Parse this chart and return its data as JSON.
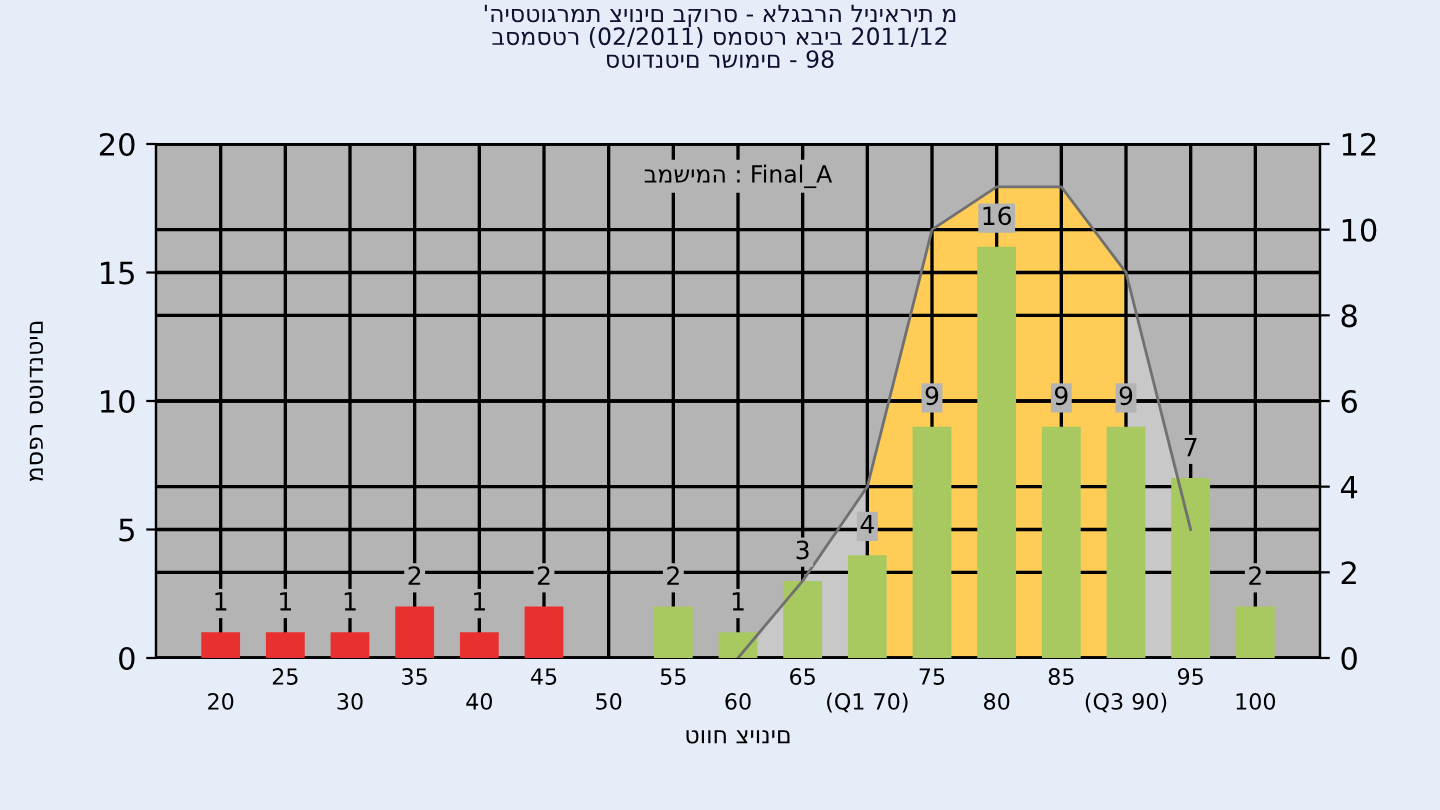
{
  "chart_data": {
    "type": "bar",
    "title": "'היסטוגרמת ציונים בקורס - אלגברה ליניארית מ\nבסמסטר (02/2011) סמסטר אביב 2011/12\nסטודנטים רשומים - 98",
    "xlabel": "טווח ציונים",
    "ylabel": "מספר סטודנטים",
    "annotations": [
      "במשימה : Final_A"
    ],
    "categories": [
      "20",
      "25",
      "30",
      "35",
      "40",
      "45",
      "50",
      "55",
      "60",
      "65",
      "(Q1 70)",
      "75",
      "80",
      "85",
      "(Q3 90)",
      "95",
      "100"
    ],
    "series": [
      {
        "type": "area",
        "axis": "y2",
        "color": "#c8c8c8",
        "values": [
          null,
          null,
          null,
          null,
          null,
          null,
          null,
          null,
          0,
          1.8,
          4,
          null,
          null,
          null,
          9,
          3,
          null
        ]
      },
      {
        "type": "area",
        "axis": "y2",
        "color": "#ffcc55",
        "values": [
          null,
          null,
          null,
          null,
          null,
          null,
          null,
          null,
          null,
          null,
          4,
          10,
          11,
          11,
          9,
          null,
          null
        ]
      },
      {
        "colors": [
          "#e83030",
          "#e83030",
          "#e83030",
          "#e83030",
          "#e83030",
          "#e83030",
          "#e83030",
          "#a8c860",
          "#a8c860",
          "#a8c860",
          "#a8c860",
          "#a8c860",
          "#a8c860",
          "#a8c860",
          "#a8c860",
          "#a8c860",
          "#a8c860"
        ],
        "values": [
          1,
          1,
          1,
          2,
          1,
          2,
          0,
          2,
          1,
          3,
          4,
          9,
          16,
          9,
          9,
          7,
          2
        ],
        "value_labels": [
          "1",
          "1",
          "1",
          "2",
          "1",
          "2",
          null,
          "2",
          "1",
          "3",
          "4",
          "9",
          "16",
          "9",
          "9",
          "7",
          "2"
        ]
      }
    ],
    "ylim": [
      0,
      20
    ],
    "yticks": [
      0,
      5,
      10,
      15,
      20
    ],
    "y2lim": [
      0,
      12
    ],
    "y2ticks": [
      0,
      2,
      4,
      6,
      8,
      10,
      12
    ],
    "grid": true,
    "legend": false
  }
}
